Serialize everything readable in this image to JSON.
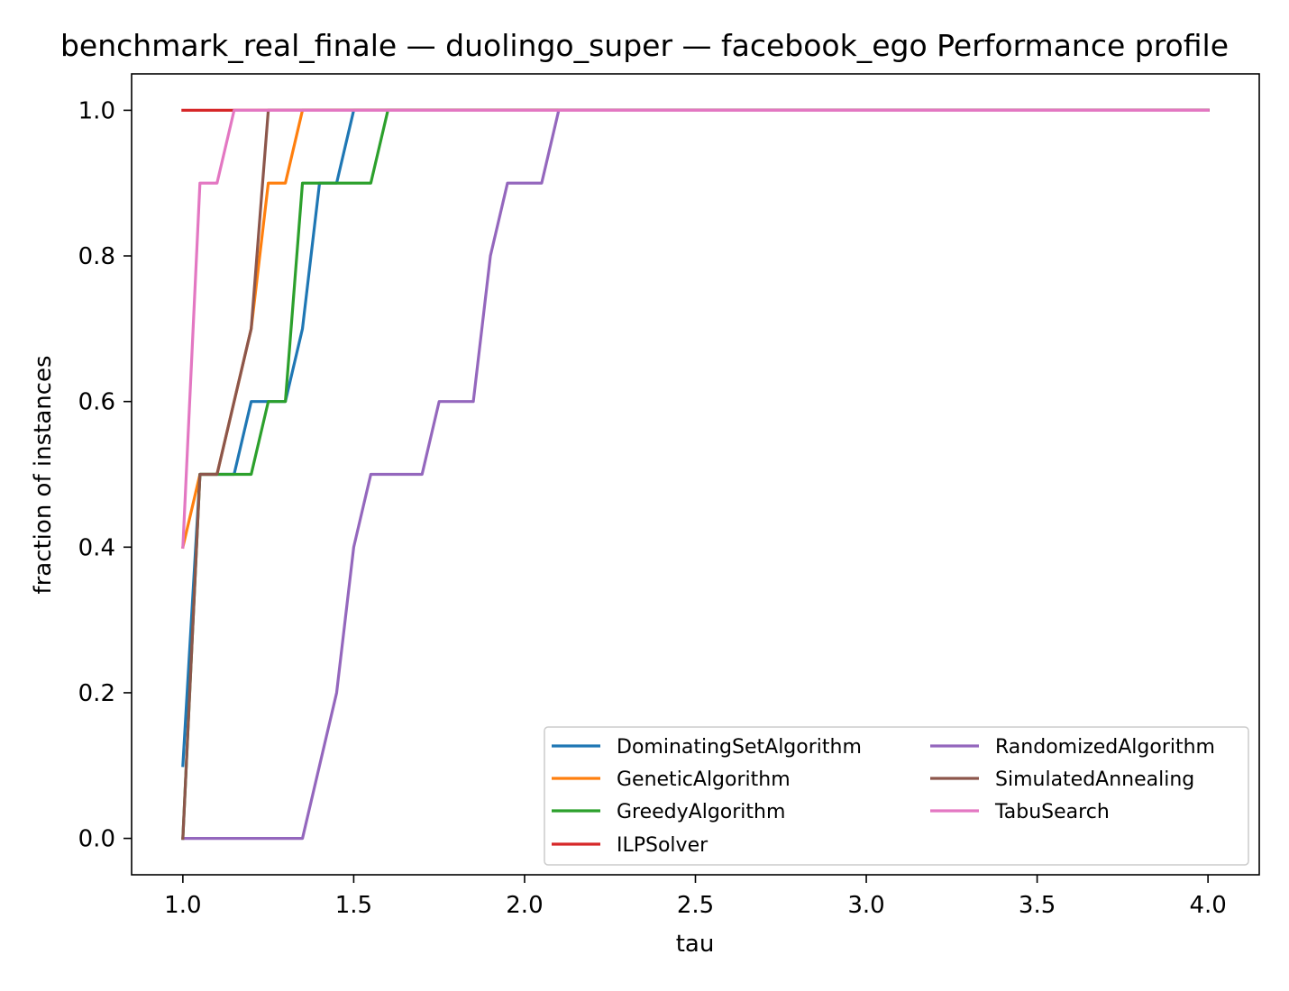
{
  "chart_data": {
    "type": "line",
    "title": "benchmark_real_finale — duolingo_super — facebook_ego Performance profile",
    "xlabel": "tau",
    "ylabel": "fraction of instances",
    "xlim": [
      0.85,
      4.15
    ],
    "ylim": [
      -0.05,
      1.05
    ],
    "xticks": [
      1.0,
      1.5,
      2.0,
      2.5,
      3.0,
      3.5,
      4.0
    ],
    "xtick_labels": [
      "1.0",
      "1.5",
      "2.0",
      "2.5",
      "3.0",
      "3.5",
      "4.0"
    ],
    "yticks": [
      0.0,
      0.2,
      0.4,
      0.6,
      0.8,
      1.0
    ],
    "ytick_labels": [
      "0.0",
      "0.2",
      "0.4",
      "0.6",
      "0.8",
      "1.0"
    ],
    "grid": false,
    "legend_position": "lower-right",
    "legend_columns": 2,
    "series": [
      {
        "name": "DominatingSetAlgorithm",
        "color": "#1f77b4",
        "x": [
          1.0,
          1.05,
          1.15,
          1.2,
          1.25,
          1.3,
          1.35,
          1.4,
          1.45,
          1.5,
          4.0
        ],
        "y": [
          0.1,
          0.5,
          0.5,
          0.6,
          0.6,
          0.6,
          0.7,
          0.9,
          0.9,
          1.0,
          1.0
        ]
      },
      {
        "name": "GeneticAlgorithm",
        "color": "#ff7f0e",
        "x": [
          1.0,
          1.05,
          1.1,
          1.2,
          1.25,
          1.3,
          1.35,
          4.0
        ],
        "y": [
          0.4,
          0.5,
          0.5,
          0.7,
          0.9,
          0.9,
          1.0,
          1.0
        ]
      },
      {
        "name": "GreedyAlgorithm",
        "color": "#2ca02c",
        "x": [
          1.0,
          1.05,
          1.2,
          1.25,
          1.3,
          1.35,
          1.55,
          1.6,
          4.0
        ],
        "y": [
          0.0,
          0.5,
          0.5,
          0.6,
          0.6,
          0.9,
          0.9,
          1.0,
          1.0
        ]
      },
      {
        "name": "ILPSolver",
        "color": "#d62728",
        "x": [
          1.0,
          4.0
        ],
        "y": [
          1.0,
          1.0
        ]
      },
      {
        "name": "RandomizedAlgorithm",
        "color": "#9467bd",
        "x": [
          1.0,
          1.35,
          1.4,
          1.45,
          1.5,
          1.55,
          1.7,
          1.75,
          1.85,
          1.9,
          1.95,
          2.05,
          2.1,
          4.0
        ],
        "y": [
          0.0,
          0.0,
          0.1,
          0.2,
          0.4,
          0.5,
          0.5,
          0.6,
          0.6,
          0.8,
          0.9,
          0.9,
          1.0,
          1.0
        ]
      },
      {
        "name": "SimulatedAnnealing",
        "color": "#8c564b",
        "x": [
          1.0,
          1.05,
          1.1,
          1.2,
          1.25,
          4.0
        ],
        "y": [
          0.0,
          0.5,
          0.5,
          0.7,
          1.0,
          1.0
        ]
      },
      {
        "name": "TabuSearch",
        "color": "#e377c2",
        "x": [
          1.0,
          1.05,
          1.1,
          1.15,
          4.0
        ],
        "y": [
          0.4,
          0.9,
          0.9,
          1.0,
          1.0
        ]
      }
    ]
  }
}
